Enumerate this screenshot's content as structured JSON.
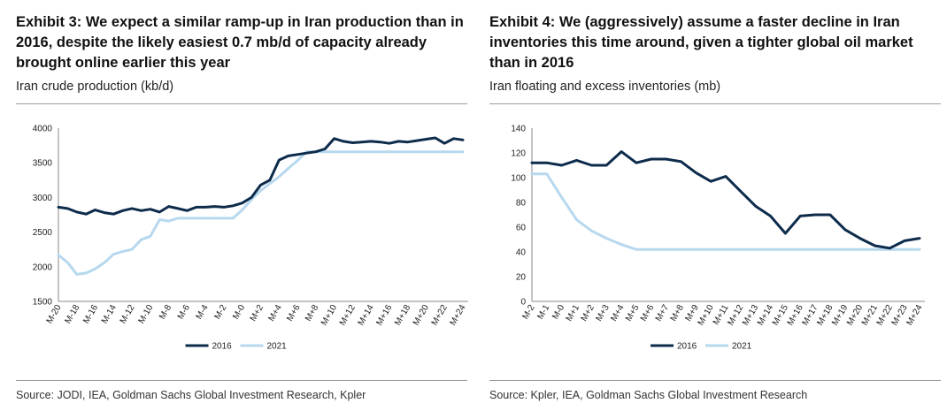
{
  "colors": {
    "series_2016": "#0d2b4b",
    "series_2021": "#b7d8ee",
    "axis": "#8a8a8a"
  },
  "exhibit3": {
    "title": "Exhibit 3: We expect a similar ramp-up in Iran production than in 2016, despite the likely easiest 0.7 mb/d of capacity already brought online earlier this year",
    "subtitle": "Iran crude production (kb/d)",
    "source": "Source: JODI, IEA, Goldman Sachs Global Investment Research, Kpler"
  },
  "exhibit4": {
    "title": "Exhibit 4: We (aggressively) assume a faster decline in Iran inventories this time around, given a tighter global oil market than in 2016",
    "subtitle": "Iran floating and excess inventories (mb)",
    "source": "Source: Kpler, IEA, Goldman Sachs Global Investment Research"
  },
  "chart_data": [
    {
      "type": "line",
      "title": "Exhibit 3: We expect a similar ramp-up in Iran production than in 2016, despite the likely easiest 0.7 mb/d of capacity already brought online earlier this year",
      "ylabel": "Iran crude production (kb/d)",
      "ylim": [
        1500,
        4000
      ],
      "yticks": [
        1500,
        2000,
        2500,
        3000,
        3500,
        4000
      ],
      "x": [
        "M-20",
        "M-19",
        "M-18",
        "M-17",
        "M-16",
        "M-15",
        "M-14",
        "M-13",
        "M-12",
        "M-11",
        "M-10",
        "M-9",
        "M-8",
        "M-7",
        "M-6",
        "M-5",
        "M-4",
        "M-3",
        "M-2",
        "M-1",
        "M-0",
        "M+1",
        "M+2",
        "M+3",
        "M+4",
        "M+5",
        "M+6",
        "M+7",
        "M+8",
        "M+9",
        "M+10",
        "M+11",
        "M+12",
        "M+13",
        "M+14",
        "M+15",
        "M+16",
        "M+17",
        "M+18",
        "M+19",
        "M+20",
        "M+21",
        "M+22",
        "M+23",
        "M+24"
      ],
      "xticks": [
        "M-20",
        "M-18",
        "M-16",
        "M-14",
        "M-12",
        "M-10",
        "M-8",
        "M-6",
        "M-4",
        "M-2",
        "M-0",
        "M+2",
        "M+4",
        "M+6",
        "M+8",
        "M+10",
        "M+12",
        "M+14",
        "M+16",
        "M+18",
        "M+20",
        "M+22",
        "M+24"
      ],
      "legend": "bottom-center",
      "series": [
        {
          "name": "2016",
          "color": "#0d2b4b",
          "values": [
            2860,
            2840,
            2790,
            2760,
            2820,
            2780,
            2760,
            2810,
            2840,
            2810,
            2830,
            2790,
            2870,
            2840,
            2810,
            2860,
            2860,
            2870,
            2860,
            2880,
            2920,
            3000,
            3180,
            3250,
            3540,
            3600,
            3620,
            3640,
            3660,
            3700,
            3850,
            3810,
            3790,
            3800,
            3810,
            3800,
            3780,
            3810,
            3800,
            3820,
            3840,
            3860,
            3780,
            3850,
            3830
          ]
        },
        {
          "name": "2021",
          "color": "#b7d8ee",
          "values": [
            2170,
            2060,
            1890,
            1910,
            1970,
            2060,
            2180,
            2220,
            2250,
            2390,
            2440,
            2680,
            2660,
            2700,
            2700,
            2700,
            2700,
            2700,
            2700,
            2700,
            2820,
            2970,
            3100,
            3200,
            3300,
            3420,
            3530,
            3660,
            3660,
            3660,
            3660,
            3660,
            3660,
            3660,
            3660,
            3660,
            3660,
            3660,
            3660,
            3660,
            3660,
            3660,
            3660,
            3660,
            3660
          ]
        }
      ]
    },
    {
      "type": "line",
      "title": "Exhibit 4: We (aggressively) assume a faster decline in Iran inventories this time around, given a tighter global oil market than in 2016",
      "ylabel": "Iran floating and excess inventories (mb)",
      "ylim": [
        0,
        140
      ],
      "yticks": [
        0,
        20,
        40,
        60,
        80,
        100,
        120,
        140
      ],
      "x": [
        "M-2",
        "M-1",
        "M-0",
        "M+1",
        "M+2",
        "M+3",
        "M+4",
        "M+5",
        "M+6",
        "M+7",
        "M+8",
        "M+9",
        "M+10",
        "M+11",
        "M+12",
        "M+13",
        "M+14",
        "M+15",
        "M+16",
        "M+17",
        "M+18",
        "M+19",
        "M+20",
        "M+21",
        "M+22",
        "M+23",
        "M+24"
      ],
      "xticks": [
        "M-2",
        "M-1",
        "M-0",
        "M+1",
        "M+2",
        "M+3",
        "M+4",
        "M+5",
        "M+6",
        "M+7",
        "M+8",
        "M+9",
        "M+10",
        "M+11",
        "M+12",
        "M+13",
        "M+14",
        "M+15",
        "M+16",
        "M+17",
        "M+18",
        "M+19",
        "M+20",
        "M+21",
        "M+22",
        "M+23",
        "M+24"
      ],
      "legend": "bottom-center",
      "series": [
        {
          "name": "2016",
          "color": "#0d2b4b",
          "values": [
            112,
            112,
            110,
            114,
            110,
            110,
            121,
            112,
            115,
            115,
            113,
            104,
            97,
            101,
            89,
            77,
            69,
            55,
            69,
            70,
            70,
            58,
            51,
            45,
            43,
            49,
            51
          ]
        },
        {
          "name": "2021",
          "color": "#b7d8ee",
          "values": [
            103,
            103,
            84,
            66,
            57,
            51,
            46,
            42,
            42,
            42,
            42,
            42,
            42,
            42,
            42,
            42,
            42,
            42,
            42,
            42,
            42,
            42,
            42,
            42,
            42,
            42,
            42
          ]
        }
      ]
    }
  ]
}
